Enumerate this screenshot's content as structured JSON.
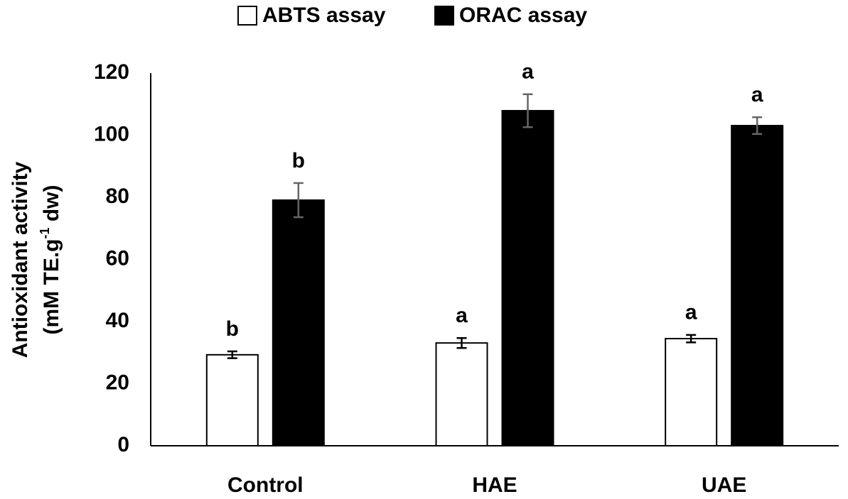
{
  "chart_data": {
    "type": "bar",
    "ylabel": {
      "line1": "Antioxidant activity",
      "before": "(mM TE.g",
      "sup": "-1",
      "after": " dw)"
    },
    "categories": [
      "Control",
      "HAE",
      "UAE"
    ],
    "series": [
      {
        "name": "ABTS assay",
        "color": "#ffffff",
        "values": [
          29.3,
          33.1,
          34.5
        ],
        "errors": [
          1.1,
          1.6,
          1.2
        ],
        "letters": [
          "b",
          "a",
          "a"
        ]
      },
      {
        "name": "ORAC assay",
        "color": "#000000",
        "values": [
          79.1,
          107.9,
          103.1
        ],
        "errors": [
          5.5,
          5.3,
          2.7
        ],
        "letters": [
          "b",
          "a",
          "a"
        ]
      }
    ],
    "ylim": [
      0,
      120
    ],
    "yticks": [
      0,
      20,
      40,
      60,
      80,
      100,
      120
    ],
    "grid": false,
    "legend": "top"
  }
}
